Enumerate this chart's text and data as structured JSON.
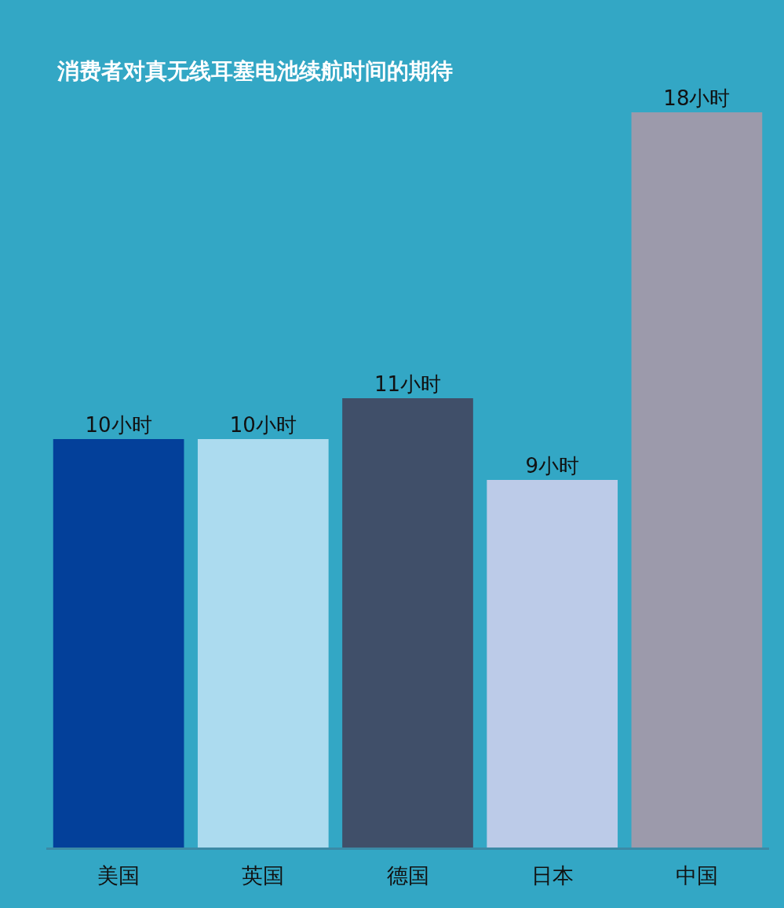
{
  "chart_data": {
    "type": "bar",
    "title": "消费者对真无线耳塞电池续航时间的期待",
    "categories": [
      "美国",
      "英国",
      "德国",
      "日本",
      "中国"
    ],
    "values": [
      10,
      10,
      11,
      9,
      18
    ],
    "colors": [
      "#03409a",
      "#acdbef",
      "#404f69",
      "#bccbe8",
      "#9c9aab"
    ],
    "value_labels": [
      "10小时",
      "10小时",
      "11小时",
      "9小时",
      "18小时"
    ]
  }
}
